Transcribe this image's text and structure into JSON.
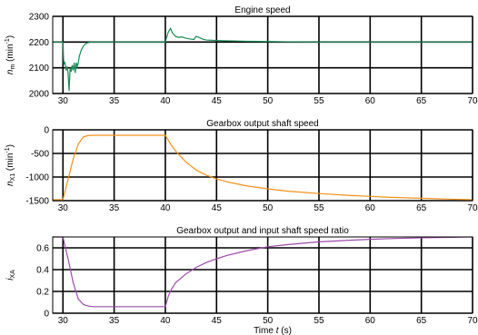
{
  "x_axis_label": {
    "prefix": "Time ",
    "var": "t",
    "suffix": " (s)"
  },
  "chart_data": [
    {
      "type": "line",
      "title": "Engine speed",
      "ylabel": {
        "main": "n",
        "sub": "m",
        "unit": " (min",
        "sup": "-1",
        "close": ")"
      },
      "xlim": [
        29,
        70
      ],
      "ylim": [
        2000,
        2300
      ],
      "xticks": [
        30,
        35,
        40,
        45,
        50,
        55,
        60,
        65,
        70
      ],
      "yticks": [
        2000,
        2100,
        2200,
        2300
      ],
      "grid": true,
      "color": "#1a8a55",
      "series": [
        {
          "x": [
            29,
            30.0,
            30.05,
            30.1,
            30.2,
            30.3,
            30.4,
            30.5,
            30.6,
            30.7,
            30.8,
            30.9,
            31.0,
            31.1,
            31.2,
            31.3,
            31.4,
            31.5,
            31.6,
            31.8,
            32.0,
            32.2,
            32.4,
            32.6,
            32.8,
            33.0,
            40.0,
            40.1,
            40.3,
            40.5,
            40.7,
            41.0,
            41.3,
            41.6,
            42.0,
            42.4,
            42.8,
            43.0,
            43.3,
            43.6,
            44.0,
            45.0,
            46.0,
            47.0,
            48.0,
            50.0,
            52.0,
            55.0,
            60.0,
            65.0,
            70.0
          ],
          "y": [
            2200,
            2200,
            2140,
            2115,
            2120,
            2090,
            2105,
            2080,
            2010,
            2100,
            2085,
            2110,
            2090,
            2120,
            2080,
            2120,
            2105,
            2120,
            2145,
            2170,
            2185,
            2193,
            2197,
            2199,
            2200,
            2200,
            2200,
            2215,
            2240,
            2253,
            2235,
            2222,
            2218,
            2220,
            2215,
            2212,
            2210,
            2222,
            2218,
            2212,
            2208,
            2206,
            2205,
            2204,
            2203,
            2202,
            2201,
            2200,
            2200,
            2200,
            2200
          ]
        }
      ]
    },
    {
      "type": "line",
      "title": "Gearbox output shaft speed",
      "ylabel": {
        "main": "n",
        "sub": "X1",
        "unit": " (min",
        "sup": "-1",
        "close": ")"
      },
      "xlim": [
        29,
        70
      ],
      "ylim": [
        -1500,
        0
      ],
      "xticks": [
        30,
        35,
        40,
        45,
        50,
        55,
        60,
        65,
        70
      ],
      "yticks": [
        -1500,
        -1000,
        -500,
        0
      ],
      "grid": true,
      "color": "#f39017",
      "series": [
        {
          "x": [
            29,
            30.0,
            30.5,
            31.0,
            31.5,
            32.0,
            32.5,
            33.0,
            35.0,
            40.0,
            40.5,
            41.0,
            42.0,
            43.0,
            44.0,
            45.0,
            46.0,
            48.0,
            50.0,
            52.0,
            55.0,
            58.0,
            60.0,
            62.0,
            65.0,
            68.0,
            70.0
          ],
          "y": [
            -1480,
            -1480,
            -1050,
            -620,
            -300,
            -150,
            -120,
            -115,
            -115,
            -115,
            -300,
            -450,
            -680,
            -850,
            -960,
            -1040,
            -1100,
            -1190,
            -1250,
            -1300,
            -1350,
            -1390,
            -1410,
            -1430,
            -1450,
            -1470,
            -1480
          ]
        }
      ]
    },
    {
      "type": "line",
      "title": "Gearbox output and input shaft speed ratio",
      "ylabel": {
        "main": "i",
        "sub": "XA",
        "unit": "",
        "sup": "",
        "close": ""
      },
      "xlim": [
        29,
        70
      ],
      "ylim": [
        0,
        0.7
      ],
      "xticks": [
        30,
        35,
        40,
        45,
        50,
        55,
        60,
        65,
        70
      ],
      "yticks": [
        0,
        0.2,
        0.4,
        0.6
      ],
      "grid": true,
      "color": "#9b4aa8",
      "series": [
        {
          "x": [
            29,
            30.0,
            30.5,
            31.0,
            31.5,
            32.0,
            32.5,
            33.0,
            35.0,
            40.0,
            40.3,
            40.6,
            41.0,
            42.0,
            43.0,
            44.0,
            45.0,
            46.0,
            48.0,
            50.0,
            52.0,
            55.0,
            58.0,
            60.0,
            62.0,
            65.0,
            68.0,
            70.0
          ],
          "y": [
            0.7,
            0.7,
            0.5,
            0.28,
            0.13,
            0.08,
            0.065,
            0.06,
            0.06,
            0.06,
            0.16,
            0.22,
            0.28,
            0.36,
            0.42,
            0.465,
            0.5,
            0.53,
            0.575,
            0.61,
            0.63,
            0.655,
            0.67,
            0.678,
            0.685,
            0.692,
            0.697,
            0.7
          ]
        }
      ]
    }
  ]
}
